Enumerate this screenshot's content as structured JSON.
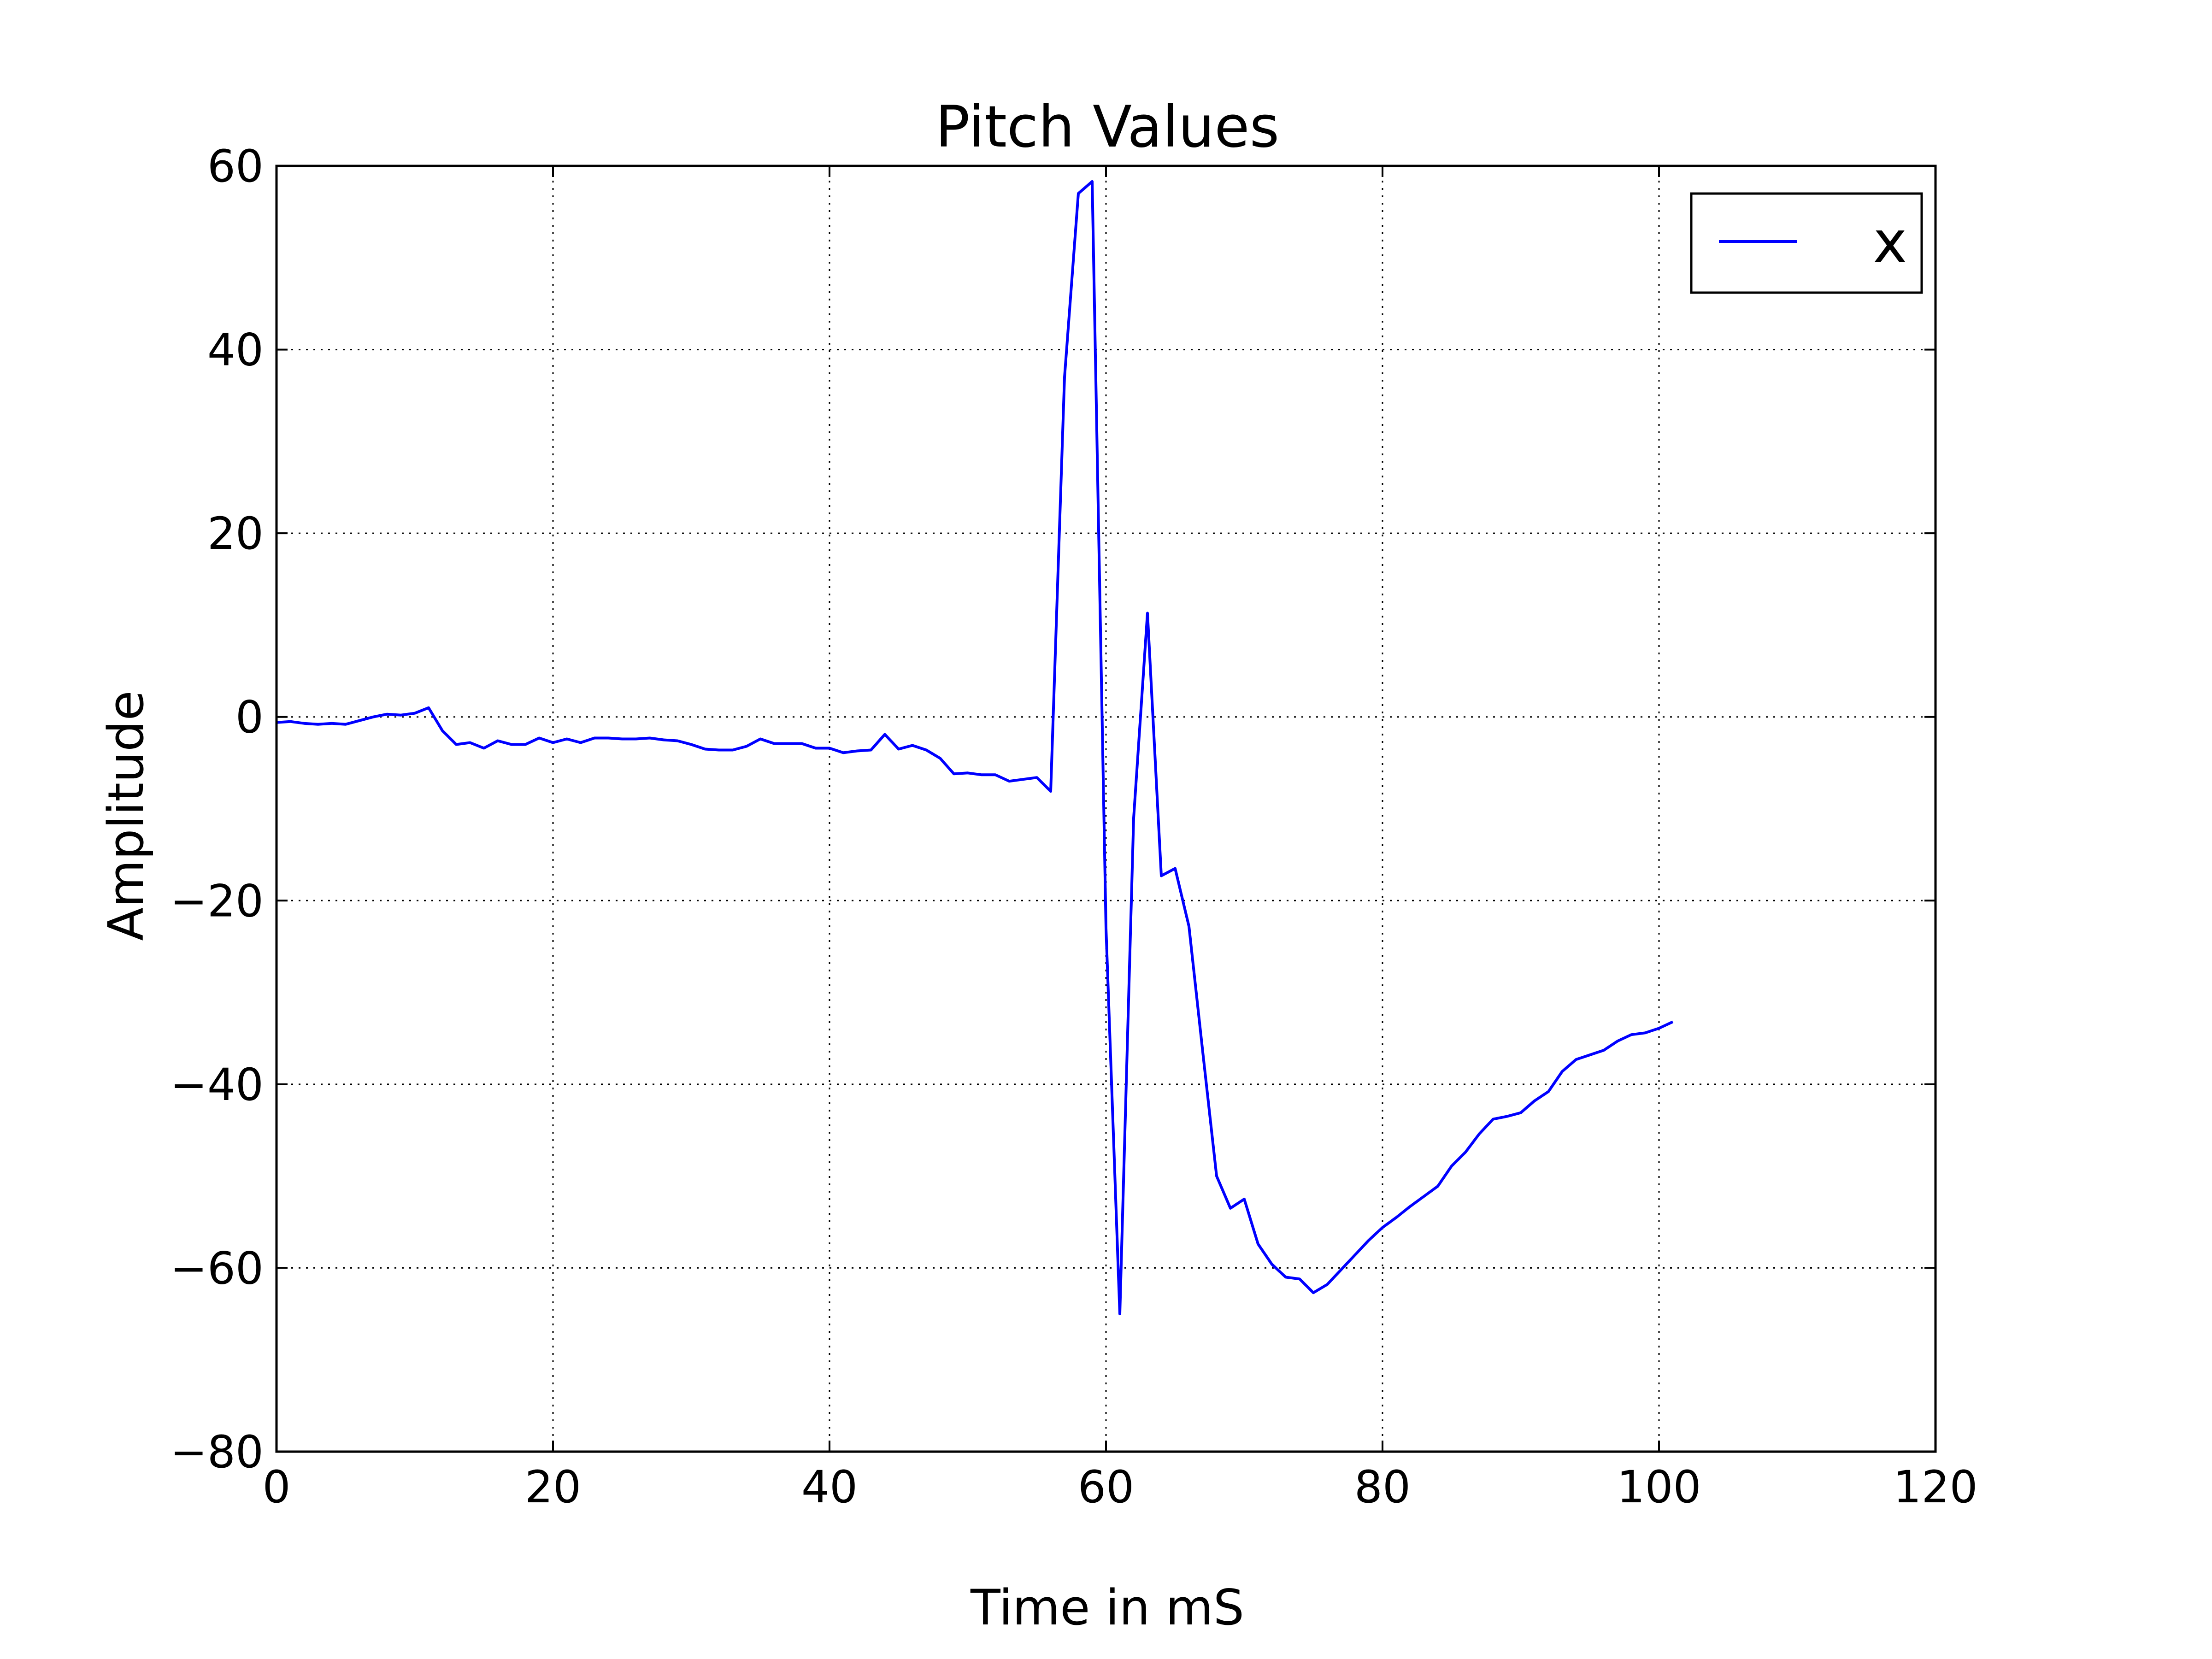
{
  "chart_data": {
    "type": "line",
    "title": "Pitch Values",
    "xlabel": "Time in mS",
    "ylabel": "Amplitude",
    "xlim": [
      0,
      120
    ],
    "ylim": [
      -80,
      60
    ],
    "x_ticks": [
      0,
      20,
      40,
      60,
      80,
      100,
      120
    ],
    "y_ticks": [
      60,
      40,
      20,
      0,
      -20,
      -40,
      -60,
      -80
    ],
    "x_tick_labels": [
      "0",
      "20",
      "40",
      "60",
      "80",
      "100",
      "120"
    ],
    "y_tick_labels": [
      "60",
      "40",
      "20",
      "0",
      "−20",
      "−40",
      "−60",
      "−80"
    ],
    "grid": true,
    "grid_style": "dotted",
    "legend_position": "top-right",
    "series": [
      {
        "name": "x",
        "color": "#0000ff",
        "x": [
          0,
          1,
          2,
          3,
          4,
          5,
          6,
          7,
          8,
          9,
          10,
          11,
          12,
          13,
          14,
          15,
          16,
          17,
          18,
          19,
          20,
          21,
          22,
          23,
          24,
          25,
          26,
          27,
          28,
          29,
          30,
          31,
          32,
          33,
          34,
          35,
          36,
          37,
          38,
          39,
          40,
          41,
          42,
          43,
          44,
          45,
          46,
          47,
          48,
          49,
          50,
          51,
          52,
          53,
          54,
          55,
          56,
          57,
          58,
          59,
          60,
          61,
          62,
          63,
          64,
          65,
          66,
          67,
          68,
          69,
          70,
          71,
          72,
          73,
          74,
          75,
          76,
          77,
          78,
          79,
          80,
          81,
          82,
          83,
          84,
          85,
          86,
          87,
          88,
          89,
          90,
          91,
          92,
          93,
          94,
          95,
          96,
          97,
          98,
          99,
          100,
          101
        ],
        "y": [
          -0.6,
          -0.5,
          -0.7,
          -0.8,
          -0.7,
          -0.8,
          -0.4,
          0.0,
          0.3,
          0.2,
          0.4,
          1.0,
          -1.5,
          -3.0,
          -2.8,
          -3.4,
          -2.6,
          -3.0,
          -3.0,
          -2.3,
          -2.8,
          -2.4,
          -2.8,
          -2.3,
          -2.3,
          -2.4,
          -2.4,
          -2.3,
          -2.5,
          -2.6,
          -3.0,
          -3.5,
          -3.6,
          -3.6,
          -3.2,
          -2.4,
          -2.9,
          -2.9,
          -2.9,
          -3.4,
          -3.4,
          -3.9,
          -3.7,
          -3.6,
          -1.9,
          -3.5,
          -3.1,
          -3.6,
          -4.5,
          -6.2,
          -6.1,
          -6.3,
          -6.3,
          -7.0,
          -6.8,
          -6.6,
          -8.1,
          37.0,
          57.0,
          58.3,
          -23.0,
          -65.0,
          -11.0,
          11.3,
          -17.3,
          -16.5,
          -22.8,
          -36.5,
          -50.0,
          -53.5,
          -52.5,
          -57.4,
          -59.6,
          -61.0,
          -61.2,
          -62.7,
          -61.8,
          -60.2,
          -58.6,
          -57.0,
          -55.6,
          -54.5,
          -53.3,
          -52.2,
          -51.1,
          -48.9,
          -47.4,
          -45.4,
          -43.8,
          -43.5,
          -43.1,
          -41.8,
          -40.8,
          -38.6,
          -37.3,
          -36.8,
          -36.3,
          -35.3,
          -34.6,
          -34.4,
          -33.9,
          -33.2
        ]
      }
    ]
  }
}
